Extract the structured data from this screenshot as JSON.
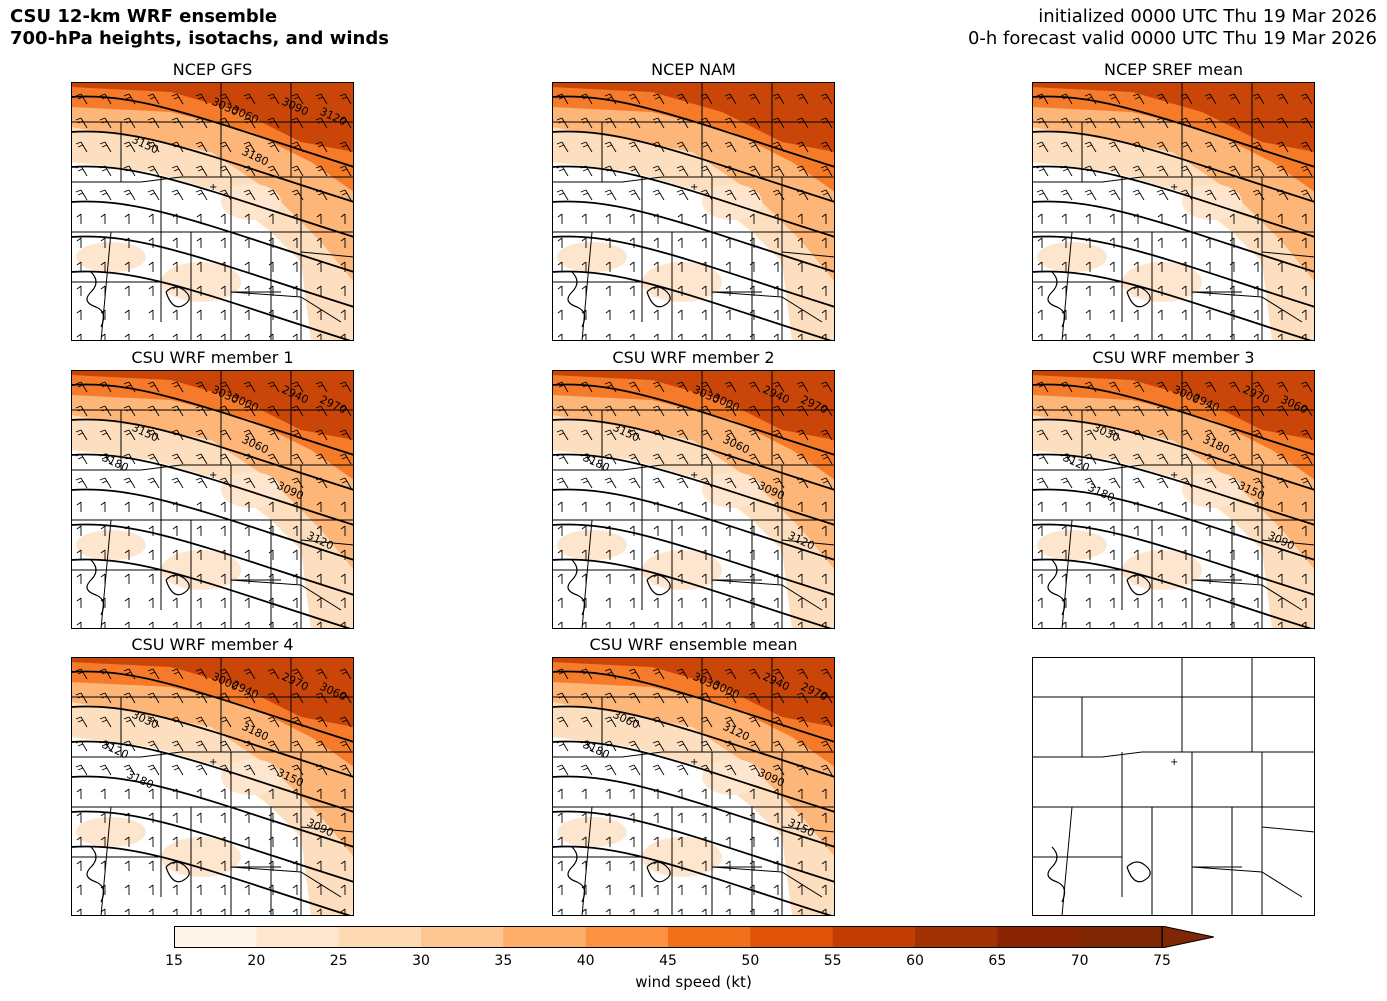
{
  "header": {
    "title_line1": "CSU 12-km WRF ensemble",
    "title_line2": "700-hPa heights, isotachs, and winds",
    "init_line": "initialized 0000 UTC Thu 19 Mar 2026",
    "valid_line": "0-h forecast valid 0000 UTC Thu 19 Mar 2026"
  },
  "panels": [
    {
      "title": "NCEP GFS",
      "contours": [
        "3030",
        "3060",
        "3090",
        "3120",
        "3150",
        "3180"
      ],
      "intensity": 1.0
    },
    {
      "title": "NCEP NAM",
      "contours": [],
      "intensity": 1.0
    },
    {
      "title": "NCEP SREF mean",
      "contours": [],
      "intensity": 1.0
    },
    {
      "title": "CSU WRF member 1",
      "contours": [
        "3030",
        "3000",
        "2940",
        "2970",
        "3150",
        "3060",
        "3180",
        "3090",
        "3120"
      ],
      "intensity": 1.0
    },
    {
      "title": "CSU WRF member 2",
      "contours": [
        "3030",
        "3000",
        "2940",
        "2970",
        "3150",
        "3060",
        "3180",
        "3090",
        "3120"
      ],
      "intensity": 1.0
    },
    {
      "title": "CSU WRF member 3",
      "contours": [
        "3000",
        "2940",
        "2970",
        "3060",
        "3030",
        "3180",
        "3120",
        "3150",
        "3090",
        "3180"
      ],
      "intensity": 1.0
    },
    {
      "title": "CSU WRF member 4",
      "contours": [
        "3000",
        "2940",
        "2970",
        "3060",
        "3030",
        "3180",
        "3120",
        "3150",
        "3090",
        "3180"
      ],
      "intensity": 1.0
    },
    {
      "title": "CSU WRF ensemble mean",
      "contours": [
        "3030",
        "3000",
        "2940",
        "2970",
        "3060",
        "3120",
        "3180",
        "3090",
        "3150"
      ],
      "intensity": 1.0
    },
    {
      "title": "",
      "contours": [],
      "intensity": 0
    }
  ],
  "colorbar": {
    "label": "wind speed (kt)",
    "ticks": [
      "15",
      "20",
      "25",
      "30",
      "35",
      "40",
      "45",
      "50",
      "55",
      "60",
      "65",
      "70",
      "75"
    ],
    "colors": [
      "#fff5eb",
      "#fee6ce",
      "#fdd9b4",
      "#fdc692",
      "#fdae6b",
      "#fd9243",
      "#f3701b",
      "#e05206",
      "#c13d02",
      "#a03203",
      "#8a2503",
      "#7f2704"
    ]
  }
}
